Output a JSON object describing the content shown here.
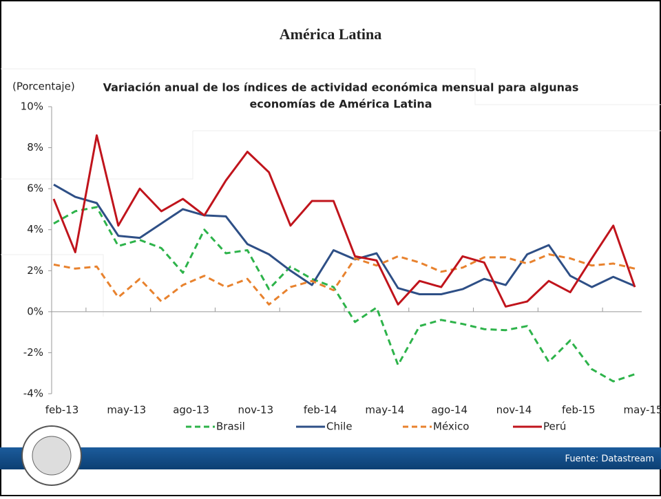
{
  "slide_title": "América Latina",
  "source": "Fuente: Datastream",
  "chart_data": {
    "type": "line",
    "title": [
      "Variación anual de los índices de actividad económica mensual para algunas",
      "economías de América Latina"
    ],
    "y_axis_label": "(Porcentaje)",
    "categories": [
      "feb-13",
      null,
      null,
      "may-13",
      null,
      null,
      "ago-13",
      null,
      null,
      "nov-13",
      null,
      null,
      "feb-14",
      null,
      null,
      "may-14",
      null,
      null,
      "ago-14",
      null,
      null,
      "nov-14",
      null,
      null,
      "feb-15",
      null,
      null,
      "may-15"
    ],
    "series": [
      {
        "name": "Brasil",
        "color": "#2db34a",
        "dash": true,
        "values": [
          4.3,
          4.9,
          5.1,
          3.2,
          3.5,
          3.1,
          1.9,
          4.0,
          2.85,
          3.0,
          1.1,
          2.2,
          1.6,
          1.2,
          -0.5,
          0.2,
          -2.6,
          -0.7,
          -0.4,
          -0.6,
          -0.85,
          -0.9,
          -0.7,
          -2.45,
          -1.4,
          -2.8,
          -3.4,
          -3.05
        ]
      },
      {
        "name": "Chile",
        "color": "#2e4f86",
        "dash": false,
        "values": [
          6.2,
          5.6,
          5.3,
          3.7,
          3.6,
          4.3,
          5.0,
          4.7,
          4.65,
          3.3,
          2.8,
          2.0,
          1.3,
          3.0,
          2.55,
          2.85,
          1.15,
          0.85,
          0.85,
          1.1,
          1.6,
          1.3,
          2.8,
          3.25,
          1.75,
          1.2,
          1.7,
          1.25
        ]
      },
      {
        "name": "México",
        "color": "#e8822e",
        "dash": true,
        "values": [
          2.3,
          2.1,
          2.2,
          0.7,
          1.6,
          0.5,
          1.3,
          1.75,
          1.2,
          1.6,
          0.35,
          1.2,
          1.5,
          1.05,
          2.6,
          2.25,
          2.7,
          2.4,
          1.95,
          2.15,
          2.65,
          2.65,
          2.35,
          2.8,
          2.6,
          2.25,
          2.35,
          2.1
        ]
      },
      {
        "name": "Perú",
        "color": "#c0141c",
        "dash": false,
        "values": [
          5.5,
          2.9,
          8.6,
          4.2,
          6.0,
          4.9,
          5.5,
          4.7,
          6.4,
          7.8,
          6.8,
          4.2,
          5.4,
          5.4,
          2.7,
          2.5,
          0.35,
          1.5,
          1.2,
          2.7,
          2.4,
          0.25,
          0.5,
          1.5,
          0.95,
          2.6,
          4.2,
          1.2
        ]
      }
    ],
    "ylim": [
      -4,
      10
    ],
    "yticks": [
      {
        "value": -4,
        "label": "-4%"
      },
      {
        "value": -2,
        "label": "-2%"
      },
      {
        "value": 0,
        "label": "0%"
      },
      {
        "value": 2,
        "label": "2%"
      },
      {
        "value": 4,
        "label": "4%"
      },
      {
        "value": 6,
        "label": "6%"
      },
      {
        "value": 8,
        "label": "8%"
      },
      {
        "value": 10,
        "label": "10%"
      }
    ],
    "grid": false
  }
}
